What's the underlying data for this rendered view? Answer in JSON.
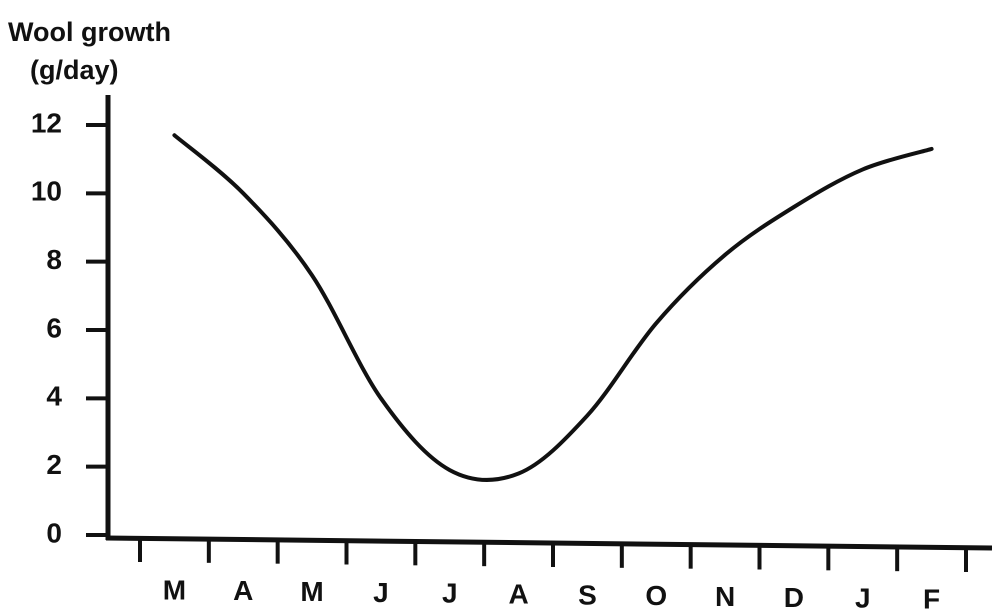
{
  "chart_data": {
    "type": "line",
    "ylabel": [
      "Wool growth",
      "(g/day)"
    ],
    "categories": [
      "M",
      "A",
      "M",
      "J",
      "J",
      "A",
      "S",
      "O",
      "N",
      "D",
      "J",
      "F"
    ],
    "values": [
      11.7,
      10,
      7.6,
      4,
      1.9,
      1.8,
      3.5,
      6.2,
      8.2,
      9.6,
      10.7,
      11.3
    ],
    "color": "#111111",
    "ylim": [
      0,
      12
    ],
    "yticks": [
      0,
      2,
      4,
      6,
      8,
      10,
      12
    ],
    "grid": false
  }
}
